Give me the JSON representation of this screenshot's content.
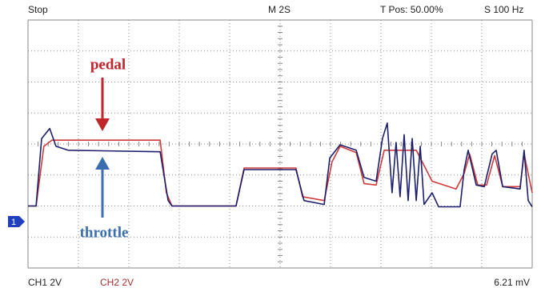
{
  "chart_data": {
    "type": "line",
    "header": {
      "state": "Stop",
      "timebase": "M 2S",
      "trigger_position": "T Pos: 50.00%",
      "sample_rate": "S 100 Hz"
    },
    "footer": {
      "ch1_scale": "CH1  2V",
      "ch2_scale": "CH2  2V",
      "readout": "6.21 mV"
    },
    "ground_marker": "1",
    "xlim": [
      0,
      20
    ],
    "ylim": [
      -3,
      13
    ],
    "grid": true,
    "series": [
      {
        "name": "pedal",
        "color": "#d03a3a",
        "x": [
          0,
          0.32,
          0.63,
          0.95,
          5.24,
          5.49,
          5.71,
          8.25,
          8.57,
          10.63,
          10.89,
          11.75,
          12.06,
          12.38,
          13.02,
          13.33,
          13.81,
          14.13,
          15.4,
          16.03,
          16.98,
          17.3,
          17.52,
          17.84,
          18.19,
          18.51,
          18.83,
          19.52,
          19.68,
          20
        ],
        "values": [
          1.0,
          1.0,
          4.85,
          5.25,
          5.25,
          1.85,
          1.0,
          1.0,
          3.45,
          3.45,
          1.6,
          1.35,
          3.85,
          4.85,
          4.45,
          2.45,
          2.35,
          4.6,
          4.6,
          2.6,
          2.1,
          3.1,
          4.35,
          2.35,
          2.35,
          4.25,
          2.25,
          2.25,
          4.35,
          1.85
        ]
      },
      {
        "name": "throttle",
        "color": "#1c1f6b",
        "x": [
          0,
          0.32,
          0.54,
          0.86,
          1.11,
          1.59,
          5.24,
          5.56,
          5.71,
          8.25,
          8.57,
          10.63,
          10.95,
          11.75,
          11.97,
          12.38,
          13.02,
          13.33,
          13.81,
          14.06,
          14.25,
          14.44,
          14.6,
          14.76,
          14.92,
          15.08,
          15.24,
          15.4,
          15.56,
          15.71,
          16.03,
          16.29,
          17.14,
          17.3,
          17.46,
          17.78,
          18.1,
          18.41,
          18.57,
          18.83,
          19.52,
          19.68,
          19.84,
          20
        ],
        "values": [
          1.0,
          1.0,
          5.35,
          6.0,
          4.85,
          4.6,
          4.5,
          1.35,
          1.0,
          1.0,
          3.35,
          3.35,
          1.35,
          1.1,
          4.1,
          4.95,
          4.6,
          2.85,
          2.6,
          5.35,
          6.35,
          1.85,
          5.1,
          1.6,
          5.6,
          1.35,
          5.35,
          1.35,
          4.85,
          1.1,
          1.85,
          0.95,
          0.95,
          3.35,
          4.6,
          2.35,
          2.25,
          4.35,
          4.6,
          2.25,
          2.1,
          4.6,
          1.35,
          0.95
        ]
      }
    ]
  }
}
